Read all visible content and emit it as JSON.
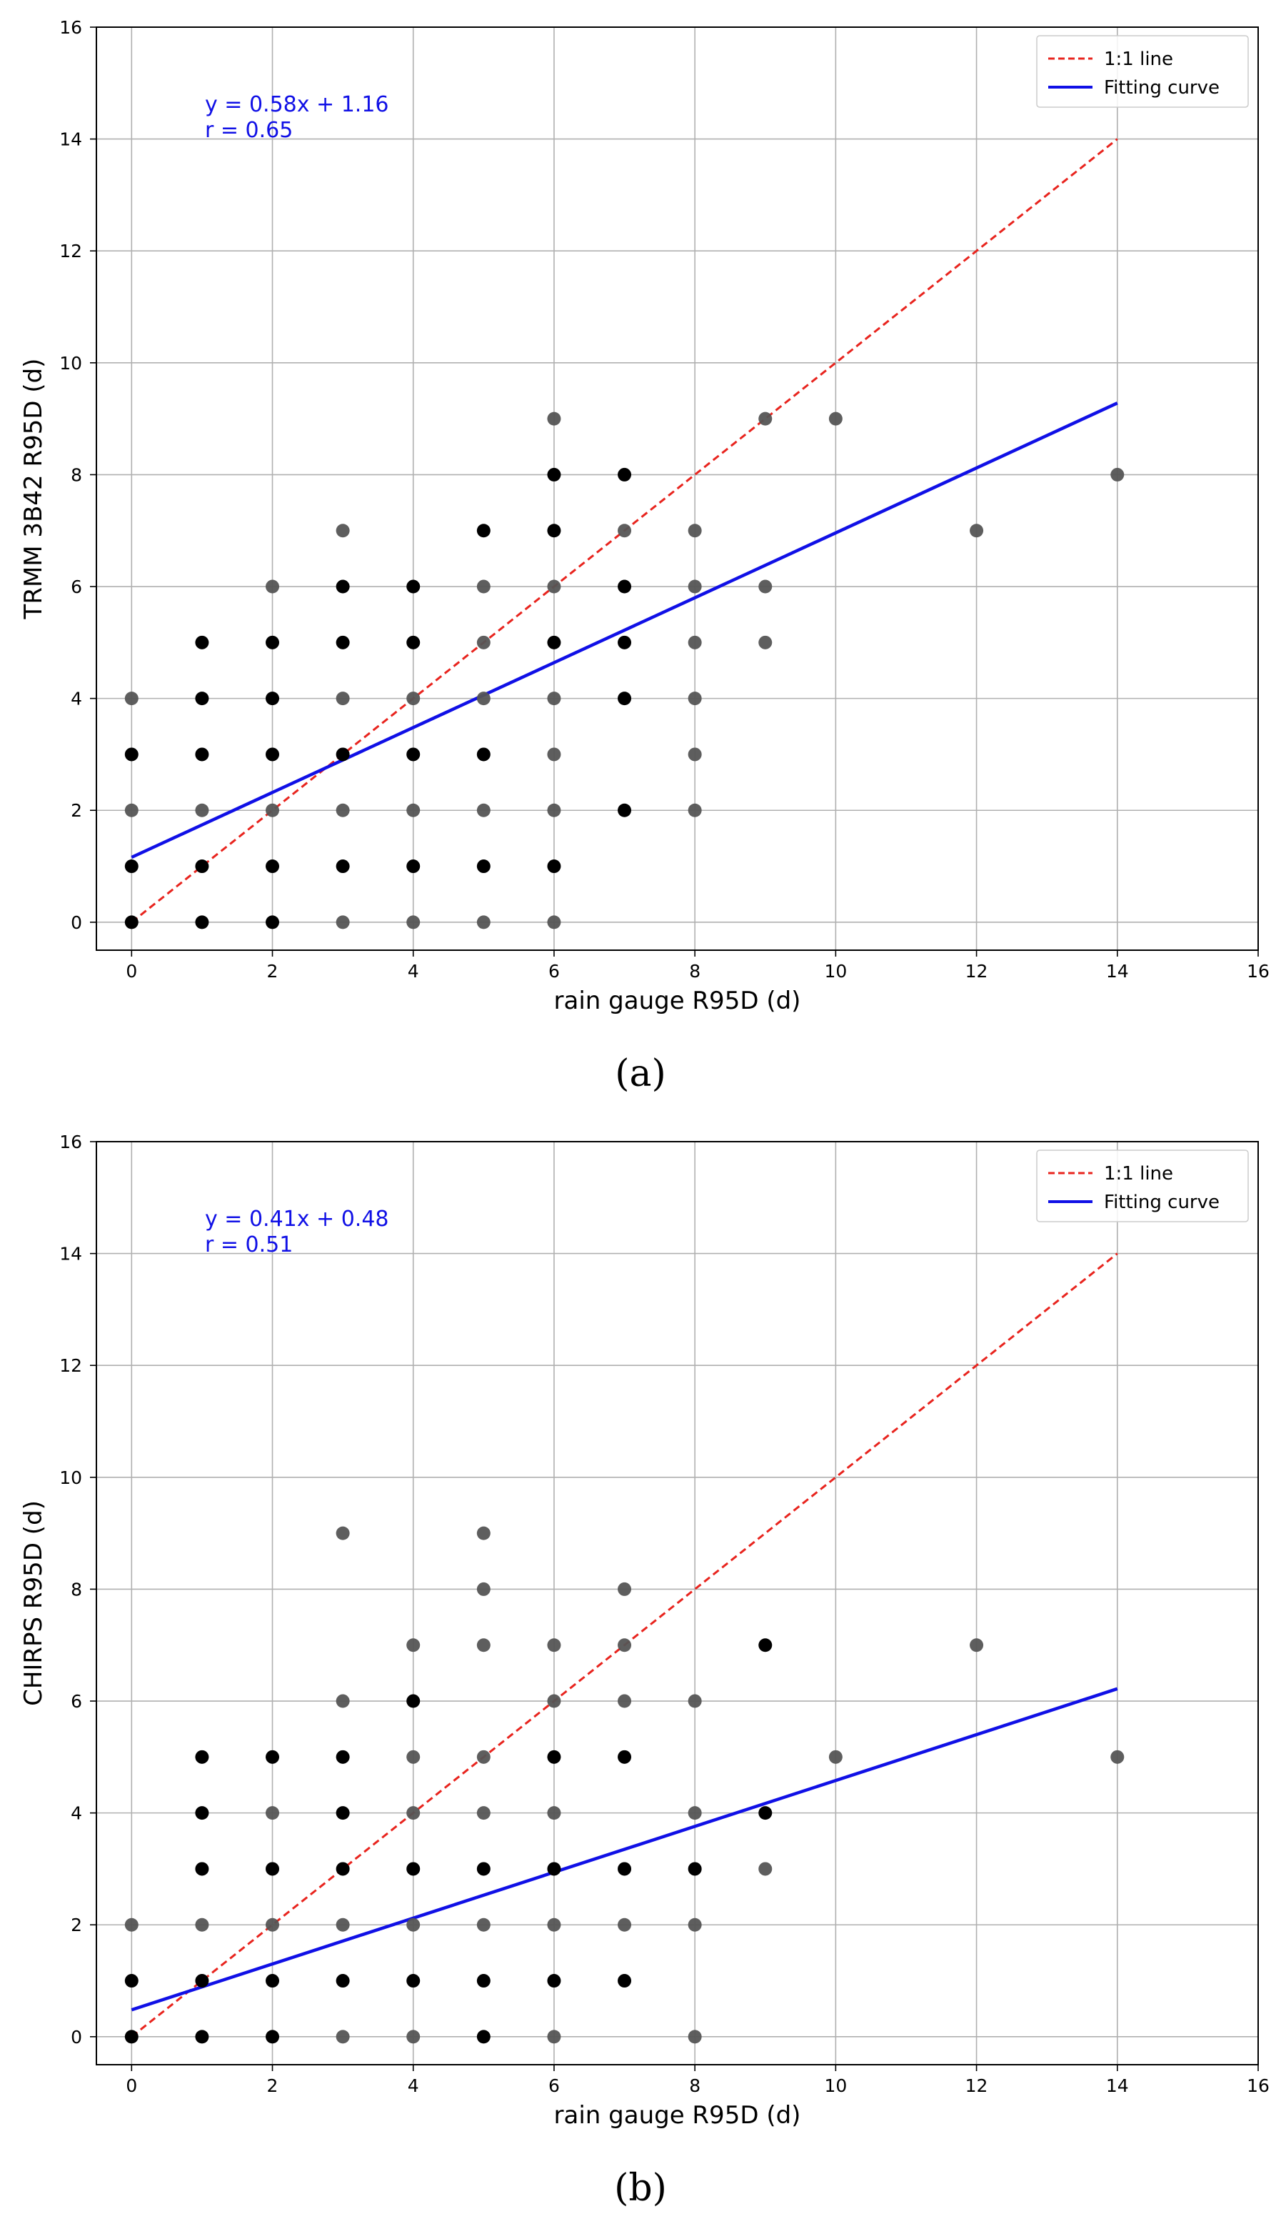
{
  "figure": {
    "panels": [
      "(a)",
      "(b)"
    ]
  },
  "colors": {
    "identity_line": "#e8241e",
    "fit_line": "#1010e6",
    "equation_text": "#1010e6",
    "point_dark": "#000000",
    "point_light": "#555555",
    "grid": "#b0b0b0"
  },
  "chart_data": [
    {
      "type": "scatter",
      "panel_label": "(a)",
      "xlabel": "rain gauge R95D (d)",
      "ylabel": "TRMM 3B42 R95D (d)",
      "xlim": [
        -0.5,
        16
      ],
      "ylim": [
        -0.5,
        16
      ],
      "xticks": [
        0,
        2,
        4,
        6,
        8,
        10,
        12,
        14,
        16
      ],
      "yticks": [
        0,
        2,
        4,
        6,
        8,
        10,
        12,
        14,
        16
      ],
      "grid": true,
      "legend_position": "top-right",
      "legend": [
        "1:1 line",
        "Fitting curve"
      ],
      "annotation": {
        "equation": "y = 0.58x + 1.16",
        "r": "r = 0.65"
      },
      "identity_line": {
        "x": [
          0,
          14
        ],
        "y": [
          0,
          14
        ]
      },
      "fit": {
        "slope": 0.58,
        "intercept": 1.16,
        "x_range": [
          0,
          14
        ]
      },
      "points": {
        "dark": [
          [
            0,
            0
          ],
          [
            0,
            1
          ],
          [
            0,
            3
          ],
          [
            1,
            0
          ],
          [
            1,
            1
          ],
          [
            1,
            3
          ],
          [
            1,
            4
          ],
          [
            1,
            5
          ],
          [
            2,
            0
          ],
          [
            2,
            1
          ],
          [
            2,
            3
          ],
          [
            2,
            4
          ],
          [
            2,
            5
          ],
          [
            3,
            1
          ],
          [
            3,
            3
          ],
          [
            3,
            5
          ],
          [
            3,
            6
          ],
          [
            4,
            1
          ],
          [
            4,
            3
          ],
          [
            4,
            5
          ],
          [
            4,
            6
          ],
          [
            5,
            1
          ],
          [
            5,
            3
          ],
          [
            5,
            7
          ],
          [
            6,
            1
          ],
          [
            6,
            5
          ],
          [
            6,
            7
          ],
          [
            6,
            8
          ],
          [
            7,
            2
          ],
          [
            7,
            4
          ],
          [
            7,
            5
          ],
          [
            7,
            6
          ],
          [
            7,
            8
          ]
        ],
        "light": [
          [
            0,
            2
          ],
          [
            0,
            4
          ],
          [
            1,
            2
          ],
          [
            2,
            2
          ],
          [
            2,
            6
          ],
          [
            3,
            0
          ],
          [
            3,
            2
          ],
          [
            3,
            4
          ],
          [
            3,
            7
          ],
          [
            4,
            0
          ],
          [
            4,
            2
          ],
          [
            4,
            4
          ],
          [
            5,
            0
          ],
          [
            5,
            2
          ],
          [
            5,
            4
          ],
          [
            5,
            5
          ],
          [
            5,
            6
          ],
          [
            6,
            0
          ],
          [
            6,
            2
          ],
          [
            6,
            3
          ],
          [
            6,
            4
          ],
          [
            6,
            6
          ],
          [
            6,
            9
          ],
          [
            7,
            7
          ],
          [
            8,
            2
          ],
          [
            8,
            3
          ],
          [
            8,
            4
          ],
          [
            8,
            5
          ],
          [
            8,
            6
          ],
          [
            8,
            7
          ],
          [
            9,
            5
          ],
          [
            9,
            6
          ],
          [
            9,
            9
          ],
          [
            10,
            9
          ],
          [
            12,
            7
          ],
          [
            14,
            8
          ]
        ]
      }
    },
    {
      "type": "scatter",
      "panel_label": "(b)",
      "xlabel": "rain gauge R95D (d)",
      "ylabel": "CHIRPS R95D (d)",
      "xlim": [
        -0.5,
        16
      ],
      "ylim": [
        -0.5,
        16
      ],
      "xticks": [
        0,
        2,
        4,
        6,
        8,
        10,
        12,
        14,
        16
      ],
      "yticks": [
        0,
        2,
        4,
        6,
        8,
        10,
        12,
        14,
        16
      ],
      "grid": true,
      "legend_position": "top-right",
      "legend": [
        "1:1 line",
        "Fitting curve"
      ],
      "annotation": {
        "equation": "y = 0.41x + 0.48",
        "r": "r = 0.51"
      },
      "identity_line": {
        "x": [
          0,
          14
        ],
        "y": [
          0,
          14
        ]
      },
      "fit": {
        "slope": 0.41,
        "intercept": 0.48,
        "x_range": [
          0,
          14
        ]
      },
      "points": {
        "dark": [
          [
            0,
            0
          ],
          [
            0,
            1
          ],
          [
            1,
            0
          ],
          [
            1,
            1
          ],
          [
            1,
            3
          ],
          [
            1,
            4
          ],
          [
            1,
            5
          ],
          [
            2,
            0
          ],
          [
            2,
            1
          ],
          [
            2,
            3
          ],
          [
            2,
            5
          ],
          [
            3,
            1
          ],
          [
            3,
            3
          ],
          [
            3,
            4
          ],
          [
            3,
            5
          ],
          [
            4,
            1
          ],
          [
            4,
            3
          ],
          [
            4,
            6
          ],
          [
            5,
            0
          ],
          [
            5,
            1
          ],
          [
            5,
            3
          ],
          [
            6,
            1
          ],
          [
            6,
            3
          ],
          [
            6,
            5
          ],
          [
            7,
            1
          ],
          [
            7,
            3
          ],
          [
            7,
            5
          ],
          [
            8,
            3
          ],
          [
            9,
            4
          ],
          [
            9,
            7
          ]
        ],
        "light": [
          [
            0,
            2
          ],
          [
            1,
            2
          ],
          [
            2,
            2
          ],
          [
            2,
            4
          ],
          [
            3,
            0
          ],
          [
            3,
            2
          ],
          [
            3,
            6
          ],
          [
            3,
            9
          ],
          [
            4,
            0
          ],
          [
            4,
            2
          ],
          [
            4,
            4
          ],
          [
            4,
            5
          ],
          [
            4,
            7
          ],
          [
            5,
            2
          ],
          [
            5,
            4
          ],
          [
            5,
            5
          ],
          [
            5,
            7
          ],
          [
            5,
            8
          ],
          [
            5,
            9
          ],
          [
            6,
            0
          ],
          [
            6,
            2
          ],
          [
            6,
            4
          ],
          [
            6,
            6
          ],
          [
            6,
            7
          ],
          [
            7,
            2
          ],
          [
            7,
            6
          ],
          [
            7,
            7
          ],
          [
            7,
            8
          ],
          [
            8,
            0
          ],
          [
            8,
            2
          ],
          [
            8,
            4
          ],
          [
            8,
            6
          ],
          [
            9,
            3
          ],
          [
            10,
            5
          ],
          [
            12,
            7
          ],
          [
            14,
            5
          ]
        ]
      }
    }
  ]
}
